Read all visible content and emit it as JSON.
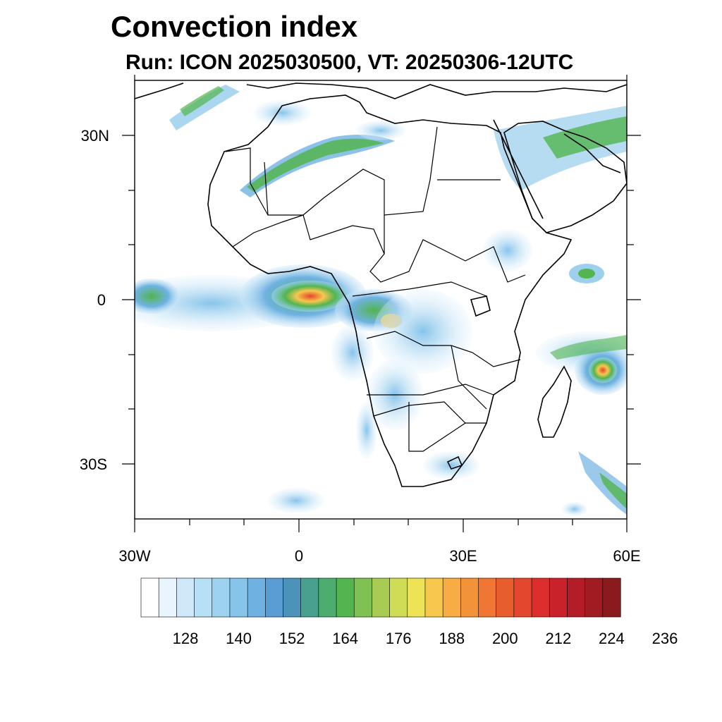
{
  "title": "Convection index",
  "subtitle": "Run: ICON 2025030500,  VT: 20250306-12UTC",
  "map": {
    "lat_labels": [
      "30N",
      "0",
      "30S"
    ],
    "lon_labels": [
      "30W",
      "0",
      "30E",
      "60E"
    ]
  },
  "legend": {
    "colors": [
      "#ffffff",
      "#e9f5fd",
      "#cfe9f8",
      "#b7e0f6",
      "#9dd3f1",
      "#86c4ea",
      "#6fb2e2",
      "#5a9dd5",
      "#4b93b8",
      "#4aa08e",
      "#4cad6e",
      "#52b54f",
      "#7fc152",
      "#a8cc53",
      "#cfdd56",
      "#eee357",
      "#f7c74e",
      "#f7ad43",
      "#f39339",
      "#ef7733",
      "#e85d2e",
      "#e3472d",
      "#dc2e2c",
      "#c9222a",
      "#b41d28",
      "#a11b22",
      "#8b1a1f"
    ],
    "labels": [
      "128",
      "140",
      "152",
      "164",
      "176",
      "188",
      "200",
      "212",
      "224",
      "236"
    ]
  }
}
